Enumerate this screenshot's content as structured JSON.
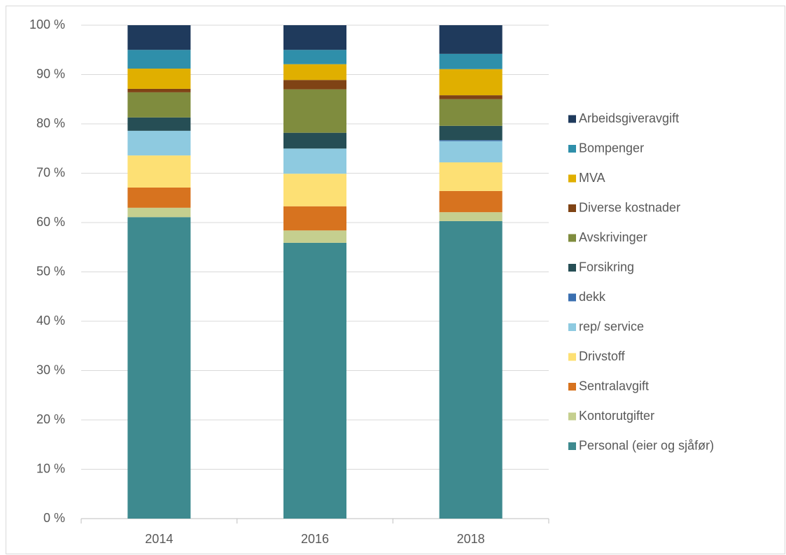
{
  "chart_data": {
    "type": "stacked_bar",
    "categories": [
      "2014",
      "2016",
      "2018"
    ],
    "series": [
      {
        "name": "Personal (eier og sjåfør)",
        "color": "#3e8a8f",
        "values": [
          61.1,
          55.9,
          60.3
        ]
      },
      {
        "name": "Kontorutgifter",
        "color": "#c5cf8f",
        "values": [
          1.9,
          2.5,
          1.8
        ]
      },
      {
        "name": "Sentralavgift",
        "color": "#d7731f",
        "values": [
          4.1,
          4.9,
          4.3
        ]
      },
      {
        "name": "Drivstoff",
        "color": "#fde074",
        "values": [
          6.5,
          6.6,
          5.8
        ]
      },
      {
        "name": "rep/ service",
        "color": "#8ecae0",
        "values": [
          5.0,
          5.1,
          4.3
        ]
      },
      {
        "name": "dekk",
        "color": "#3a6fb0",
        "values": [
          0,
          0,
          0.2
        ]
      },
      {
        "name": "Forsikring",
        "color": "#264e55",
        "values": [
          2.7,
          3.2,
          2.9
        ]
      },
      {
        "name": "Avskrivinger",
        "color": "#7f8c3e",
        "values": [
          5.1,
          8.8,
          5.4
        ]
      },
      {
        "name": "Diverse kostnader",
        "color": "#7f4315",
        "values": [
          0.7,
          1.9,
          0.8
        ]
      },
      {
        "name": "MVA",
        "color": "#e0af00",
        "values": [
          4.1,
          3.2,
          5.3
        ]
      },
      {
        "name": "Bompenger",
        "color": "#2f8faa",
        "values": [
          3.8,
          2.9,
          3.1
        ]
      },
      {
        "name": "Arbeidsgiveravgift",
        "color": "#1f3a5c",
        "values": [
          5.0,
          5.0,
          5.8
        ]
      }
    ],
    "ylim": [
      0,
      100
    ],
    "yticks": [
      {
        "value": 0,
        "label": "0 %"
      },
      {
        "value": 10,
        "label": "10 %"
      },
      {
        "value": 20,
        "label": "20 %"
      },
      {
        "value": 30,
        "label": "30 %"
      },
      {
        "value": 40,
        "label": "40 %"
      },
      {
        "value": 50,
        "label": "50 %"
      },
      {
        "value": 60,
        "label": "60 %"
      },
      {
        "value": 70,
        "label": "70 %"
      },
      {
        "value": 80,
        "label": "80 %"
      },
      {
        "value": 90,
        "label": "90 %"
      },
      {
        "value": 100,
        "label": "100 %"
      }
    ],
    "grid": true,
    "legend": "right"
  }
}
